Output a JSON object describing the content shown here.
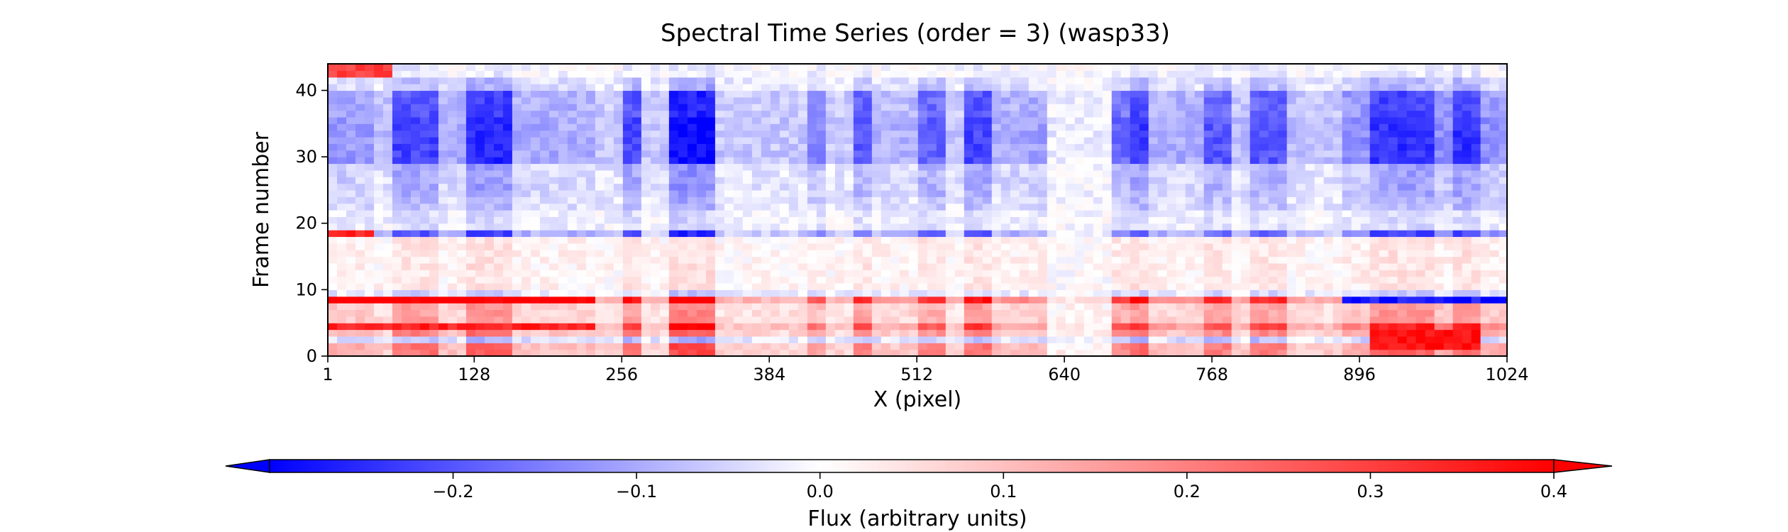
{
  "chart_data": {
    "type": "heatmap",
    "title": "Spectral Time Series (order = 3) (wasp33)",
    "xlabel": "X (pixel)",
    "ylabel": "Frame number",
    "xlim": [
      1,
      1024
    ],
    "ylim": [
      0,
      44
    ],
    "xticks": [
      1,
      128,
      256,
      384,
      512,
      640,
      768,
      896,
      1024
    ],
    "xtick_labels": [
      "1",
      "128",
      "256",
      "384",
      "512",
      "640",
      "768",
      "896",
      "1024"
    ],
    "yticks": [
      0,
      10,
      20,
      30,
      40
    ],
    "ytick_labels": [
      "0",
      "10",
      "20",
      "30",
      "40"
    ],
    "n_frames": 44,
    "colormap": "bwr",
    "vmin": -0.3,
    "vmax": 0.4,
    "colorbar": {
      "label": "Flux (arbitrary units)",
      "orientation": "horizontal",
      "extend": "both",
      "ticks": [
        -0.2,
        -0.1,
        0.0,
        0.1,
        0.2,
        0.3,
        0.4
      ],
      "tick_labels": [
        "−0.2",
        "−0.1",
        "0.0",
        "0.1",
        "0.2",
        "0.3",
        "0.4"
      ]
    },
    "column_strength": [
      {
        "x": [
          1,
          40
        ],
        "value": 0.55
      },
      {
        "x": [
          40,
          60
        ],
        "value": 0.35
      },
      {
        "x": [
          60,
          100
        ],
        "value": 1.0
      },
      {
        "x": [
          100,
          125
        ],
        "value": 0.45
      },
      {
        "x": [
          125,
          165
        ],
        "value": 1.15
      },
      {
        "x": [
          165,
          230
        ],
        "value": 0.45
      },
      {
        "x": [
          230,
          258
        ],
        "value": 0.3
      },
      {
        "x": [
          258,
          275
        ],
        "value": 1.0
      },
      {
        "x": [
          275,
          300
        ],
        "value": 0.3
      },
      {
        "x": [
          300,
          340
        ],
        "value": 1.3
      },
      {
        "x": [
          340,
          420
        ],
        "value": 0.3
      },
      {
        "x": [
          420,
          430
        ],
        "value": 0.65
      },
      {
        "x": [
          430,
          455
        ],
        "value": 0.3
      },
      {
        "x": [
          455,
          475
        ],
        "value": 0.9
      },
      {
        "x": [
          475,
          515
        ],
        "value": 0.4
      },
      {
        "x": [
          515,
          535
        ],
        "value": 0.85
      },
      {
        "x": [
          535,
          550
        ],
        "value": 0.3
      },
      {
        "x": [
          550,
          575
        ],
        "value": 1.0
      },
      {
        "x": [
          575,
          600
        ],
        "value": 0.45
      },
      {
        "x": [
          600,
          625
        ],
        "value": 0.5
      },
      {
        "x": [
          625,
          680
        ],
        "value": 0.1
      },
      {
        "x": [
          680,
          695
        ],
        "value": 0.8
      },
      {
        "x": [
          695,
          715
        ],
        "value": 1.05
      },
      {
        "x": [
          715,
          760
        ],
        "value": 0.45
      },
      {
        "x": [
          760,
          785
        ],
        "value": 0.9
      },
      {
        "x": [
          785,
          800
        ],
        "value": 0.35
      },
      {
        "x": [
          800,
          830
        ],
        "value": 0.9
      },
      {
        "x": [
          830,
          880
        ],
        "value": 0.35
      },
      {
        "x": [
          880,
          905
        ],
        "value": 0.6
      },
      {
        "x": [
          905,
          960
        ],
        "value": 1.1
      },
      {
        "x": [
          960,
          975
        ],
        "value": 0.6
      },
      {
        "x": [
          975,
          1000
        ],
        "value": 1.1
      },
      {
        "x": [
          1000,
          1024
        ],
        "value": 0.6
      }
    ],
    "row_bands": [
      {
        "frames": [
          0,
          2
        ],
        "value": 0.22
      },
      {
        "frames": [
          2,
          3
        ],
        "value": -0.08
      },
      {
        "frames": [
          3,
          4
        ],
        "value": 0.2
      },
      {
        "frames": [
          4,
          5
        ],
        "value": 0.32
      },
      {
        "frames": [
          5,
          8
        ],
        "value": 0.15
      },
      {
        "frames": [
          8,
          9
        ],
        "value": 0.38
      },
      {
        "frames": [
          9,
          10
        ],
        "value": -0.05
      },
      {
        "frames": [
          10,
          18
        ],
        "value": 0.04
      },
      {
        "frames": [
          18,
          19
        ],
        "value": -0.2
      },
      {
        "frames": [
          19,
          22
        ],
        "value": -0.04
      },
      {
        "frames": [
          22,
          24
        ],
        "value": -0.08
      },
      {
        "frames": [
          24,
          29
        ],
        "value": -0.1
      },
      {
        "frames": [
          29,
          36
        ],
        "value": -0.22
      },
      {
        "frames": [
          36,
          40
        ],
        "value": -0.2
      },
      {
        "frames": [
          40,
          42
        ],
        "value": -0.08
      },
      {
        "frames": [
          42,
          44
        ],
        "value": -0.02
      }
    ],
    "special_rows": [
      {
        "frames": [
          42,
          44
        ],
        "x": [
          1,
          60
        ],
        "value": 0.3
      },
      {
        "frames": [
          18,
          19
        ],
        "x": [
          1,
          40
        ],
        "value": 0.35
      },
      {
        "frames": [
          8,
          9
        ],
        "x": [
          880,
          1024
        ],
        "value": -0.28
      },
      {
        "frames": [
          1,
          4
        ],
        "x": [
          905,
          1000
        ],
        "value": 0.38
      },
      {
        "frames": [
          8,
          9
        ],
        "x": [
          1,
          230
        ],
        "value": 0.42
      },
      {
        "frames": [
          4,
          5
        ],
        "x": [
          1,
          230
        ],
        "value": 0.35
      }
    ]
  }
}
